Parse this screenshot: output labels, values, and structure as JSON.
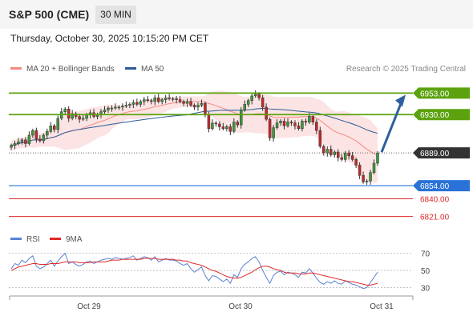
{
  "header": {
    "title": "S&P 500 (CME)",
    "interval": "30 MIN",
    "datetime": "Thursday, October 30, 2025 10:15:20 PM CET"
  },
  "chart_data": {
    "type": "candlestick",
    "instrument": "S&P 500 (CME)",
    "interval": "30 MIN",
    "attribution": "Research © 2025 Trading Central",
    "legend": [
      {
        "name": "MA 20 + Bollinger Bands",
        "color": "#f28b82"
      },
      {
        "name": "MA 50",
        "color": "#2c5a9a"
      }
    ],
    "x_tick_labels": [
      "Oct 29",
      "Oct 30",
      "Oct 31"
    ],
    "ylim": [
      6813,
      6967
    ],
    "current_price": 6889.0,
    "levels": [
      {
        "value": 6953.0,
        "label": "6953.00",
        "role": "resistance",
        "color": "#5ca20e"
      },
      {
        "value": 6930.0,
        "label": "6930.00",
        "role": "resistance",
        "color": "#5ca20e"
      },
      {
        "value": 6889.0,
        "label": "6889.00",
        "role": "current",
        "color": "#333333"
      },
      {
        "value": 6854.0,
        "label": "6854.00",
        "role": "pivot",
        "color": "#2a72d8"
      },
      {
        "value": 6840.0,
        "label": "6840.00",
        "role": "support",
        "color": "#e02828"
      },
      {
        "value": 6821.0,
        "label": "6821.00",
        "role": "support",
        "color": "#e02828"
      }
    ],
    "projection": {
      "from": 6889,
      "to": 6953
    },
    "close_series": [
      6897,
      6899,
      6901,
      6903,
      6899,
      6908,
      6913,
      6904,
      6902,
      6908,
      6912,
      6918,
      6914,
      6926,
      6933,
      6936,
      6926,
      6931,
      6928,
      6925,
      6926,
      6930,
      6932,
      6928,
      6930,
      6933,
      6935,
      6937,
      6937,
      6938,
      6938,
      6939,
      6940,
      6941,
      6943,
      6941,
      6944,
      6946,
      6945,
      6944,
      6948,
      6944,
      6946,
      6948,
      6947,
      6947,
      6946,
      6944,
      6942,
      6944,
      6940,
      6938,
      6940,
      6942,
      6930,
      6915,
      6921,
      6920,
      6917,
      6915,
      6917,
      6912,
      6922,
      6919,
      6935,
      6941,
      6945,
      6950,
      6952,
      6948,
      6938,
      6925,
      6905,
      6916,
      6921,
      6923,
      6918,
      6922,
      6921,
      6918,
      6915,
      6923,
      6922,
      6928,
      6922,
      6913,
      6896,
      6889,
      6893,
      6887,
      6890,
      6884,
      6882,
      6889,
      6886,
      6882,
      6876,
      6865,
      6858,
      6859,
      6868,
      6878,
      6889
    ],
    "rsi_panel": {
      "legend": [
        {
          "name": "RSI",
          "color": "#5b82d1"
        },
        {
          "name": "9MA",
          "color": "#e02828"
        }
      ],
      "ylim": [
        24,
        78
      ],
      "levels": [
        70,
        50,
        30
      ],
      "tick_labels": [
        "70",
        "50",
        "30"
      ],
      "rsi": [
        52,
        58,
        56,
        62,
        59,
        64,
        67,
        55,
        52,
        54,
        58,
        62,
        55,
        61,
        66,
        70,
        58,
        60,
        57,
        55,
        57,
        60,
        61,
        58,
        60,
        62,
        63,
        64,
        63,
        65,
        64,
        63,
        64,
        65,
        67,
        62,
        64,
        66,
        65,
        62,
        66,
        60,
        62,
        64,
        62,
        62,
        61,
        58,
        56,
        58,
        52,
        48,
        51,
        54,
        44,
        38,
        44,
        43,
        40,
        37,
        40,
        35,
        45,
        42,
        52,
        57,
        60,
        64,
        66,
        60,
        50,
        42,
        35,
        44,
        48,
        49,
        45,
        48,
        47,
        45,
        42,
        48,
        47,
        52,
        47,
        41,
        36,
        34,
        37,
        35,
        38,
        35,
        34,
        38,
        36,
        34,
        33,
        31,
        29,
        30,
        36,
        42,
        48
      ],
      "ma9": [
        50,
        52,
        54,
        55,
        56,
        57,
        58,
        58,
        57,
        57,
        57,
        58,
        58,
        58,
        59,
        60,
        60,
        60,
        60,
        59,
        59,
        59,
        59,
        60,
        60,
        60,
        60,
        61,
        62,
        62,
        62,
        63,
        63,
        63,
        63,
        63,
        63,
        64,
        64,
        64,
        64,
        63,
        63,
        63,
        63,
        63,
        62,
        62,
        61,
        61,
        59,
        58,
        57,
        56,
        54,
        52,
        50,
        49,
        47,
        45,
        43,
        42,
        41,
        41,
        42,
        44,
        46,
        48,
        51,
        53,
        55,
        55,
        54,
        52,
        51,
        50,
        48,
        47,
        47,
        47,
        46,
        46,
        46,
        47,
        47,
        46,
        45,
        44,
        43,
        42,
        41,
        40,
        39,
        38,
        37,
        37,
        36,
        35,
        34,
        33,
        33,
        34,
        35
      ]
    }
  }
}
